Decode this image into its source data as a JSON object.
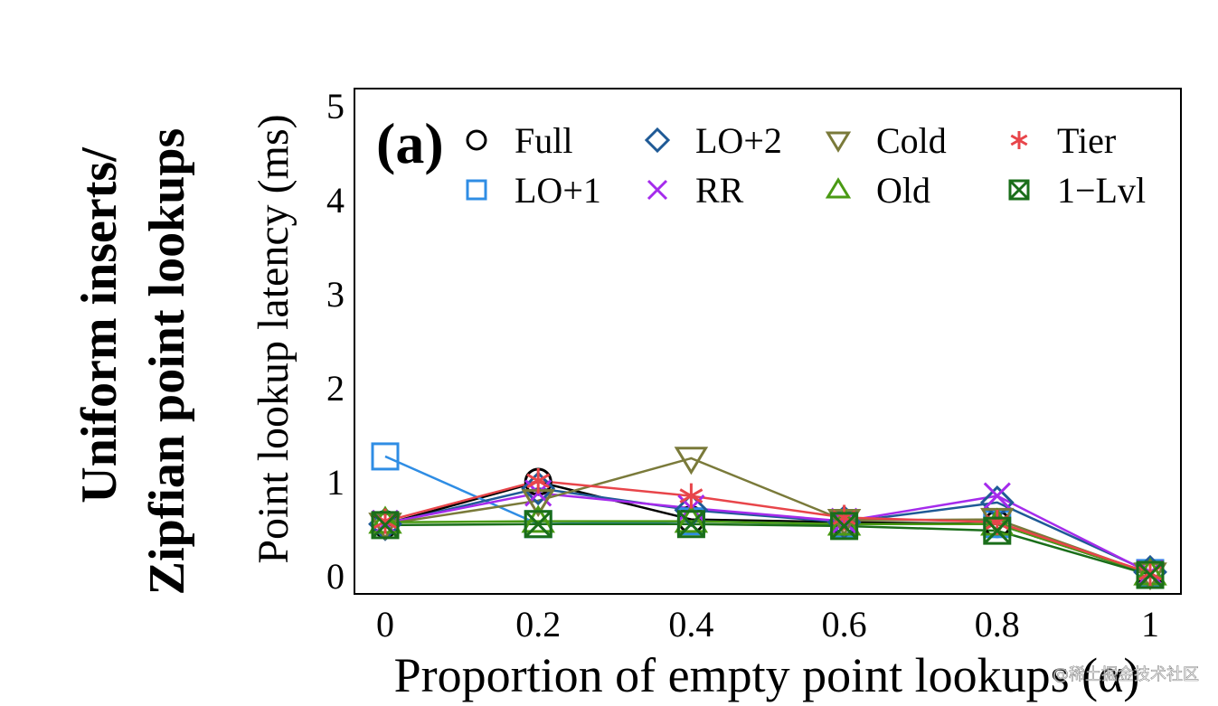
{
  "side_title": {
    "line1": "Uniform inserts/",
    "line2": "Zipfian point lookups"
  },
  "panel_label": "(a)",
  "watermark": "@稀土掘金技术社区",
  "chart_data": {
    "type": "line",
    "title": "",
    "xlabel": "Proportion of empty point lookups (α)",
    "ylabel": "Point lookup latency (ms)",
    "x": [
      0,
      0.2,
      0.4,
      0.6,
      0.8,
      1
    ],
    "x_tick_labels": [
      "0",
      "0.2",
      "0.4",
      "0.6",
      "0.8",
      "1"
    ],
    "xlim": [
      0,
      1
    ],
    "ylim": [
      0,
      5
    ],
    "y_ticks": [
      0,
      1,
      2,
      3,
      4,
      5
    ],
    "y_tick_labels": [
      "0",
      "1",
      "2",
      "3",
      "4",
      "5"
    ],
    "grid": false,
    "legend_position": "top",
    "series": [
      {
        "name": "Full",
        "marker": "circle",
        "color": "#000000",
        "values": [
          0.55,
          1.0,
          0.6,
          0.57,
          0.55,
          0.02
        ]
      },
      {
        "name": "LO+1",
        "marker": "square",
        "color": "#2f8de4",
        "values": [
          1.27,
          0.55,
          0.58,
          0.55,
          0.55,
          0.03
        ]
      },
      {
        "name": "LO+2",
        "marker": "diamond",
        "color": "#1f5a96",
        "values": [
          0.55,
          0.93,
          0.7,
          0.57,
          0.78,
          0.04
        ]
      },
      {
        "name": "RR",
        "marker": "x",
        "color": "#a52bec",
        "values": [
          0.56,
          0.88,
          0.72,
          0.58,
          0.85,
          0.03
        ]
      },
      {
        "name": "Cold",
        "marker": "triangle-down",
        "color": "#7a7a3a",
        "values": [
          0.55,
          0.8,
          1.25,
          0.59,
          0.6,
          0.02
        ]
      },
      {
        "name": "Old",
        "marker": "triangle-up",
        "color": "#4a9a14",
        "values": [
          0.57,
          0.58,
          0.58,
          0.55,
          0.55,
          0.02
        ]
      },
      {
        "name": "Tier",
        "marker": "asterisk",
        "color": "#e8454a",
        "values": [
          0.58,
          1.01,
          0.85,
          0.62,
          0.57,
          0.03
        ]
      },
      {
        "name": "1−Lvl",
        "marker": "square-x",
        "color": "#1a6e1a",
        "values": [
          0.54,
          0.55,
          0.55,
          0.53,
          0.48,
          0.01
        ]
      }
    ]
  }
}
